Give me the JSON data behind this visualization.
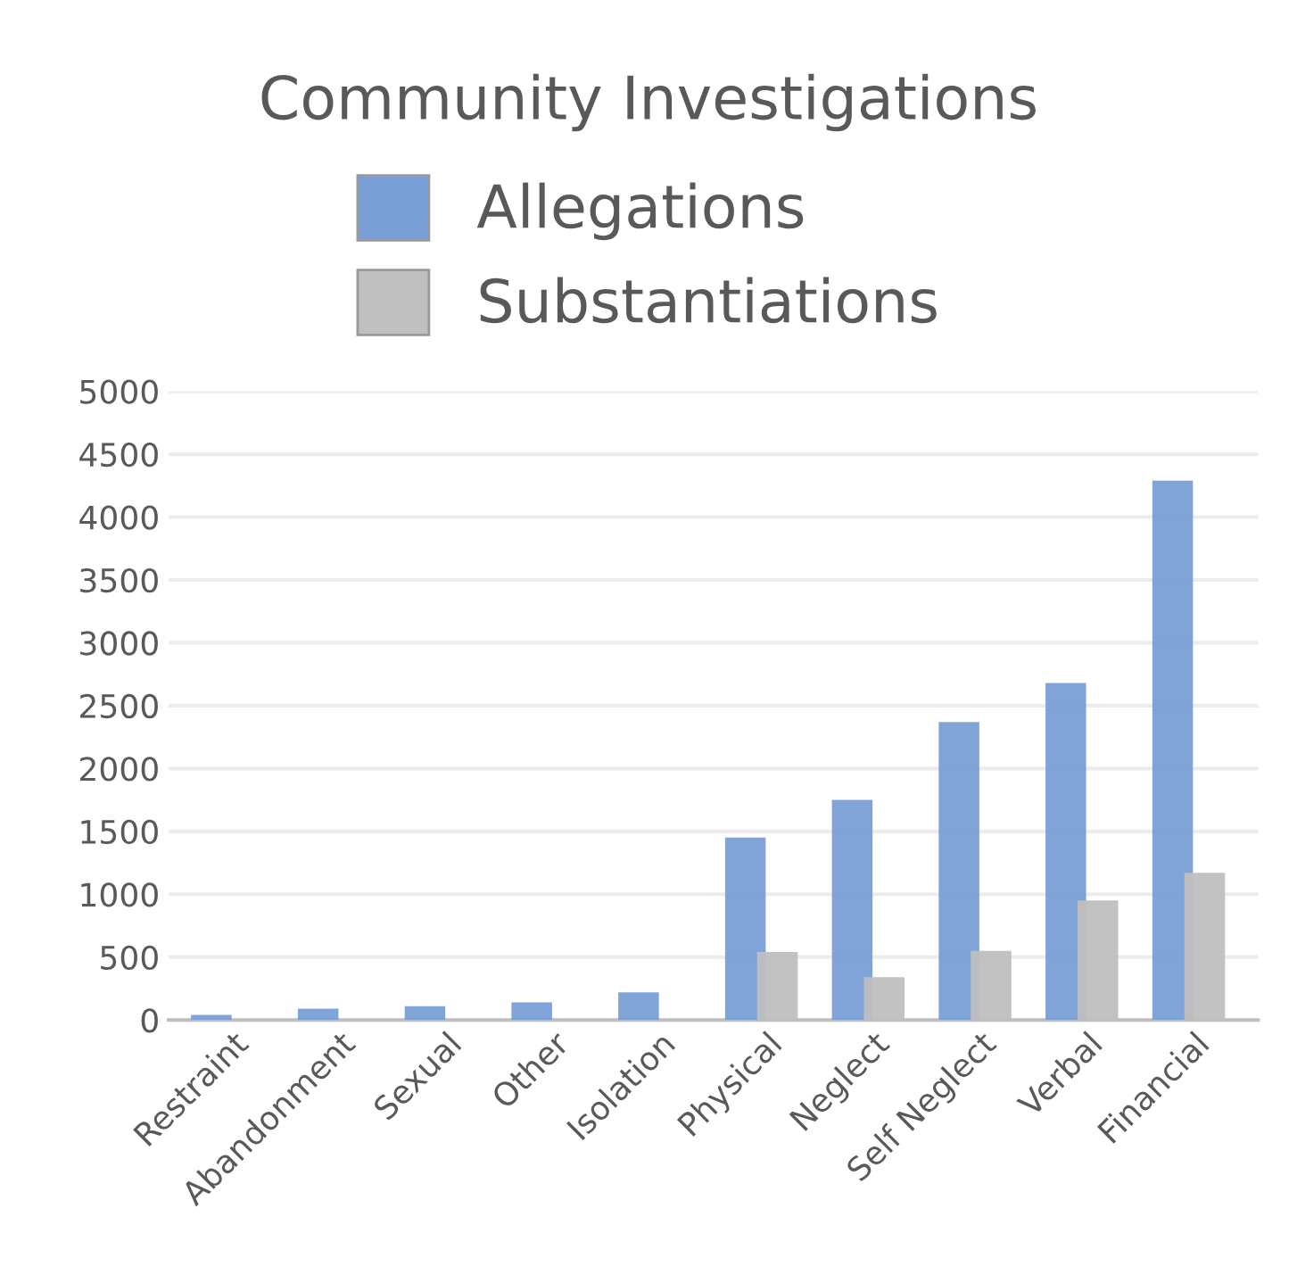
{
  "chart_data": {
    "type": "bar",
    "title": "Community Investigations",
    "categories": [
      "Restraint",
      "Abandonment",
      "Sexual",
      "Other",
      "Isolation",
      "Physical",
      "Neglect",
      "Self Neglect",
      "Verbal",
      "Financial"
    ],
    "series": [
      {
        "name": "Allegations",
        "color": "#7a9fd6",
        "values": [
          40,
          90,
          110,
          140,
          220,
          1450,
          1750,
          2370,
          2680,
          4290
        ]
      },
      {
        "name": "Substantiations",
        "color": "#bfbfbf",
        "values": [
          null,
          null,
          null,
          null,
          null,
          540,
          340,
          550,
          950,
          1170
        ]
      }
    ],
    "ylim": [
      0,
      5000
    ],
    "yticks": [
      0,
      500,
      1000,
      1500,
      2000,
      2500,
      3000,
      3500,
      4000,
      4500,
      5000
    ],
    "grid": "y",
    "legend": "top"
  }
}
